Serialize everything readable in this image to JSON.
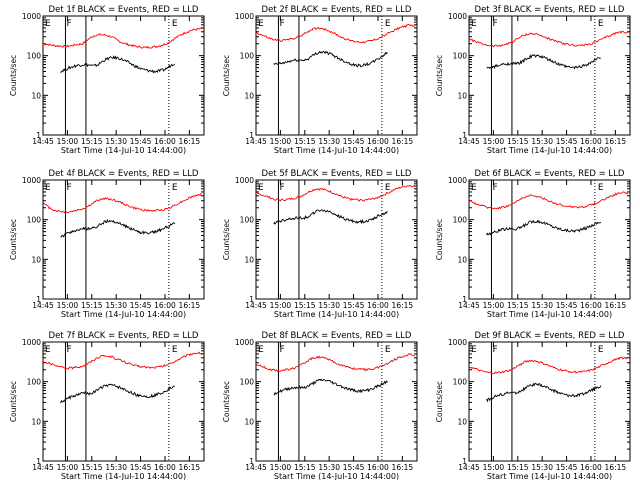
{
  "chart_data": [
    {
      "type": "line",
      "title": "Det 1f BLACK = Events, RED = LLD",
      "ylabel": "Counts/sec",
      "xlabel": "Start Time (14-Jul-10 14:44:00)",
      "xticks": [
        "14:45",
        "15:00",
        "15:15",
        "15:30",
        "15:45",
        "16:00",
        "16:15"
      ],
      "yticks": [
        "1",
        "10",
        "100",
        "1000"
      ],
      "yscale": "log",
      "ylim": [
        1,
        1000
      ],
      "markers": [
        "E",
        "F",
        "E"
      ],
      "series": [
        {
          "color": "#ff0000",
          "values": [
            200,
            190,
            180,
            175,
            170,
            180,
            190,
            200,
            260,
            320,
            340,
            330,
            300,
            250,
            210,
            190,
            175,
            165,
            160,
            165,
            170,
            185,
            210,
            260,
            320,
            380,
            430,
            460,
            480
          ]
        },
        {
          "color": "#000000",
          "values": [
            40,
            45,
            50,
            55,
            58,
            60,
            58,
            55,
            60,
            75,
            85,
            90,
            88,
            80,
            70,
            60,
            52,
            46,
            43,
            41,
            40,
            42,
            45,
            55,
            65
          ]
        }
      ]
    },
    {
      "type": "line",
      "title": "Det 2f BLACK = Events, RED = LLD",
      "ylabel": "Counts/sec",
      "xlabel": "Start Time (14-Jul-10 14:44:00)",
      "xticks": [
        "14:45",
        "15:00",
        "15:15",
        "15:30",
        "15:45",
        "16:00",
        "16:15"
      ],
      "yticks": [
        "1",
        "10",
        "100",
        "1000"
      ],
      "yscale": "log",
      "ylim": [
        1,
        1000
      ],
      "markers": [
        "E",
        "F",
        "E"
      ],
      "series": [
        {
          "color": "#ff0000",
          "values": [
            380,
            330,
            280,
            250,
            240,
            250,
            270,
            300,
            360,
            450,
            500,
            480,
            420,
            350,
            290,
            250,
            230,
            220,
            225,
            240,
            270,
            320,
            390,
            470,
            540,
            580,
            570
          ]
        },
        {
          "color": "#000000",
          "values": [
            60,
            62,
            65,
            70,
            75,
            78,
            76,
            80,
            95,
            115,
            125,
            120,
            110,
            95,
            82,
            72,
            64,
            58,
            56,
            58,
            62,
            70,
            82,
            100,
            120
          ]
        }
      ]
    },
    {
      "type": "line",
      "title": "Det 3f BLACK = Events, RED = LLD",
      "ylabel": "Counts/sec",
      "xlabel": "Start Time (14-Jul-10 14:44:00)",
      "xticks": [
        "14:45",
        "15:00",
        "15:15",
        "15:30",
        "15:45",
        "16:00",
        "16:15"
      ],
      "yticks": [
        "1",
        "10",
        "100",
        "1000"
      ],
      "yscale": "log",
      "ylim": [
        1,
        1000
      ],
      "markers": [
        "E",
        "F",
        "E"
      ],
      "series": [
        {
          "color": "#ff0000",
          "values": [
            260,
            230,
            200,
            185,
            175,
            180,
            195,
            215,
            270,
            330,
            360,
            350,
            310,
            270,
            235,
            210,
            195,
            185,
            180,
            185,
            200,
            230,
            270,
            320,
            370,
            400,
            390
          ]
        },
        {
          "color": "#000000",
          "values": [
            48,
            50,
            54,
            58,
            62,
            64,
            62,
            66,
            78,
            92,
            100,
            98,
            90,
            80,
            70,
            62,
            56,
            52,
            50,
            51,
            54,
            60,
            68,
            80,
            90
          ]
        }
      ]
    },
    {
      "type": "line",
      "title": "Det 4f BLACK = Events, RED = LLD",
      "ylabel": "Counts/sec",
      "xlabel": "Start Time (14-Jul-10 14:44:00)",
      "xticks": [
        "14:45",
        "15:00",
        "15:15",
        "15:30",
        "15:45",
        "16:00",
        "16:15"
      ],
      "yticks": [
        "1",
        "10",
        "100",
        "1000"
      ],
      "yscale": "log",
      "ylim": [
        1,
        1000
      ],
      "markers": [
        "E",
        "F",
        "E"
      ],
      "series": [
        {
          "color": "#ff0000",
          "values": [
            260,
            200,
            170,
            160,
            155,
            165,
            180,
            200,
            250,
            310,
            340,
            330,
            300,
            260,
            220,
            195,
            180,
            170,
            168,
            172,
            185,
            210,
            250,
            300,
            360,
            410,
            430
          ]
        },
        {
          "color": "#000000",
          "values": [
            35,
            42,
            48,
            52,
            56,
            60,
            58,
            62,
            72,
            85,
            92,
            90,
            84,
            75,
            66,
            58,
            52,
            48,
            46,
            47,
            50,
            55,
            62,
            72,
            80
          ]
        }
      ]
    },
    {
      "type": "line",
      "title": "Det 5f BLACK = Events, RED = LLD",
      "ylabel": "Counts/sec",
      "xlabel": "Start Time (14-Jul-10 14:44:00)",
      "xticks": [
        "14:45",
        "15:00",
        "15:15",
        "15:30",
        "15:45",
        "16:00",
        "16:15"
      ],
      "yticks": [
        "1",
        "10",
        "100",
        "1000"
      ],
      "yscale": "log",
      "ylim": [
        1,
        1000
      ],
      "markers": [
        "E",
        "F",
        "E"
      ],
      "series": [
        {
          "color": "#ff0000",
          "values": [
            460,
            420,
            370,
            330,
            310,
            320,
            340,
            370,
            440,
            540,
            600,
            580,
            520,
            450,
            380,
            340,
            320,
            310,
            315,
            330,
            370,
            430,
            510,
            600,
            680,
            720,
            700
          ]
        },
        {
          "color": "#000000",
          "values": [
            80,
            88,
            95,
            102,
            108,
            112,
            110,
            115,
            135,
            160,
            172,
            168,
            152,
            135,
            118,
            105,
            96,
            90,
            88,
            90,
            96,
            108,
            124,
            142,
            160
          ]
        }
      ]
    },
    {
      "type": "line",
      "title": "Det 6f BLACK = Events, RED = LLD",
      "ylabel": "Counts/sec",
      "xlabel": "Start Time (14-Jul-10 14:44:00)",
      "xticks": [
        "14:45",
        "15:00",
        "15:15",
        "15:30",
        "15:45",
        "16:00",
        "16:15"
      ],
      "yticks": [
        "1",
        "10",
        "100",
        "1000"
      ],
      "yscale": "log",
      "ylim": [
        1,
        1000
      ],
      "markers": [
        "E",
        "F",
        "E"
      ],
      "series": [
        {
          "color": "#ff0000",
          "values": [
            300,
            260,
            225,
            205,
            195,
            200,
            215,
            240,
            300,
            370,
            400,
            390,
            350,
            300,
            260,
            235,
            220,
            210,
            208,
            215,
            235,
            270,
            320,
            380,
            440,
            480,
            470
          ]
        },
        {
          "color": "#000000",
          "values": [
            42,
            46,
            50,
            55,
            58,
            60,
            58,
            62,
            72,
            85,
            92,
            90,
            84,
            75,
            66,
            60,
            56,
            53,
            52,
            53,
            56,
            62,
            70,
            80,
            88
          ]
        }
      ]
    },
    {
      "type": "line",
      "title": "Det 7f BLACK = Events, RED = LLD",
      "ylabel": "Counts/sec",
      "xlabel": "Start Time (14-Jul-10 14:44:00)",
      "xticks": [
        "14:45",
        "15:00",
        "15:15",
        "15:30",
        "15:45",
        "16:00",
        "16:15"
      ],
      "yticks": [
        "1",
        "10",
        "100",
        "1000"
      ],
      "yscale": "log",
      "ylim": [
        1,
        1000
      ],
      "markers": [
        "E",
        "F",
        "E"
      ],
      "series": [
        {
          "color": "#ff0000",
          "values": [
            330,
            290,
            250,
            230,
            220,
            225,
            240,
            265,
            330,
            410,
            450,
            430,
            380,
            330,
            285,
            255,
            240,
            230,
            228,
            235,
            255,
            295,
            350,
            420,
            490,
            530,
            520
          ]
        },
        {
          "color": "#000000",
          "values": [
            30,
            35,
            40,
            44,
            48,
            52,
            50,
            54,
            64,
            76,
            82,
            80,
            74,
            66,
            58,
            52,
            47,
            44,
            42,
            43,
            46,
            51,
            58,
            68,
            76
          ]
        }
      ]
    },
    {
      "type": "line",
      "title": "Det 8f BLACK = Events, RED = LLD",
      "ylabel": "Counts/sec",
      "xlabel": "Start Time (14-Jul-10 14:44:00)",
      "xticks": [
        "14:45",
        "15:00",
        "15:15",
        "15:30",
        "15:45",
        "16:00",
        "16:15"
      ],
      "yticks": [
        "1",
        "10",
        "100",
        "1000"
      ],
      "yscale": "log",
      "ylim": [
        1,
        1000
      ],
      "markers": [
        "E",
        "F",
        "E"
      ],
      "series": [
        {
          "color": "#ff0000",
          "values": [
            280,
            240,
            210,
            195,
            190,
            200,
            215,
            240,
            300,
            380,
            420,
            400,
            350,
            300,
            260,
            230,
            215,
            205,
            202,
            210,
            230,
            265,
            315,
            380,
            440,
            480,
            470
          ]
        },
        {
          "color": "#000000",
          "values": [
            50,
            55,
            60,
            66,
            70,
            72,
            70,
            74,
            86,
            102,
            110,
            108,
            100,
            88,
            78,
            70,
            64,
            60,
            58,
            59,
            62,
            68,
            78,
            90,
            100
          ]
        }
      ]
    },
    {
      "type": "line",
      "title": "Det 9f BLACK = Events, RED = LLD",
      "ylabel": "Counts/sec",
      "xlabel": "Start Time (14-Jul-10 14:44:00)",
      "xticks": [
        "14:45",
        "15:00",
        "15:15",
        "15:30",
        "15:45",
        "16:00",
        "16:15"
      ],
      "yticks": [
        "1",
        "10",
        "100",
        "1000"
      ],
      "yscale": "log",
      "ylim": [
        1,
        1000
      ],
      "markers": [
        "E",
        "F",
        "E"
      ],
      "series": [
        {
          "color": "#ff0000",
          "values": [
            240,
            210,
            185,
            170,
            165,
            170,
            182,
            200,
            250,
            310,
            340,
            330,
            295,
            255,
            220,
            198,
            185,
            176,
            174,
            180,
            195,
            225,
            265,
            315,
            365,
            400,
            390
          ]
        },
        {
          "color": "#000000",
          "values": [
            34,
            38,
            43,
            47,
            50,
            53,
            52,
            56,
            66,
            78,
            85,
            83,
            77,
            68,
            60,
            54,
            49,
            46,
            44,
            45,
            48,
            53,
            60,
            70,
            78
          ]
        }
      ]
    }
  ]
}
